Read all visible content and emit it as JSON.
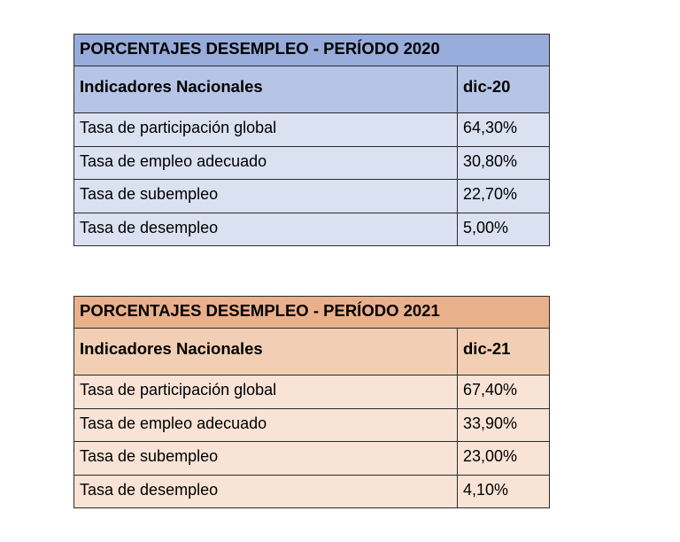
{
  "tables": [
    {
      "title": "PORCENTAJES DESEMPLEO - PERÍODO 2020",
      "header": {
        "label": "Indicadores Nacionales",
        "period": "dic-20"
      },
      "colors": {
        "title_bg": "#98acdb",
        "header_bg": "#b6c5e6",
        "row_bg": "#dae1f1"
      },
      "rows": [
        {
          "label": "Tasa de participación global",
          "value": "64,30%"
        },
        {
          "label": "Tasa de empleo adecuado",
          "value": "30,80%"
        },
        {
          "label": "Tasa de subempleo",
          "value": "22,70%"
        },
        {
          "label": "Tasa de desempleo",
          "value": "5,00%"
        }
      ]
    },
    {
      "title": "PORCENTAJES DESEMPLEO - PERÍODO 2021",
      "header": {
        "label": "Indicadores Nacionales",
        "period": "dic-21"
      },
      "colors": {
        "title_bg": "#e9b08c",
        "header_bg": "#f2cfb4",
        "row_bg": "#f8e3d6"
      },
      "rows": [
        {
          "label": "Tasa de participación global",
          "value": "67,40%"
        },
        {
          "label": "Tasa de empleo adecuado",
          "value": "33,90%"
        },
        {
          "label": "Tasa de subempleo",
          "value": "23,00%"
        },
        {
          "label": "Tasa de desempleo",
          "value": "4,10%"
        }
      ]
    }
  ]
}
